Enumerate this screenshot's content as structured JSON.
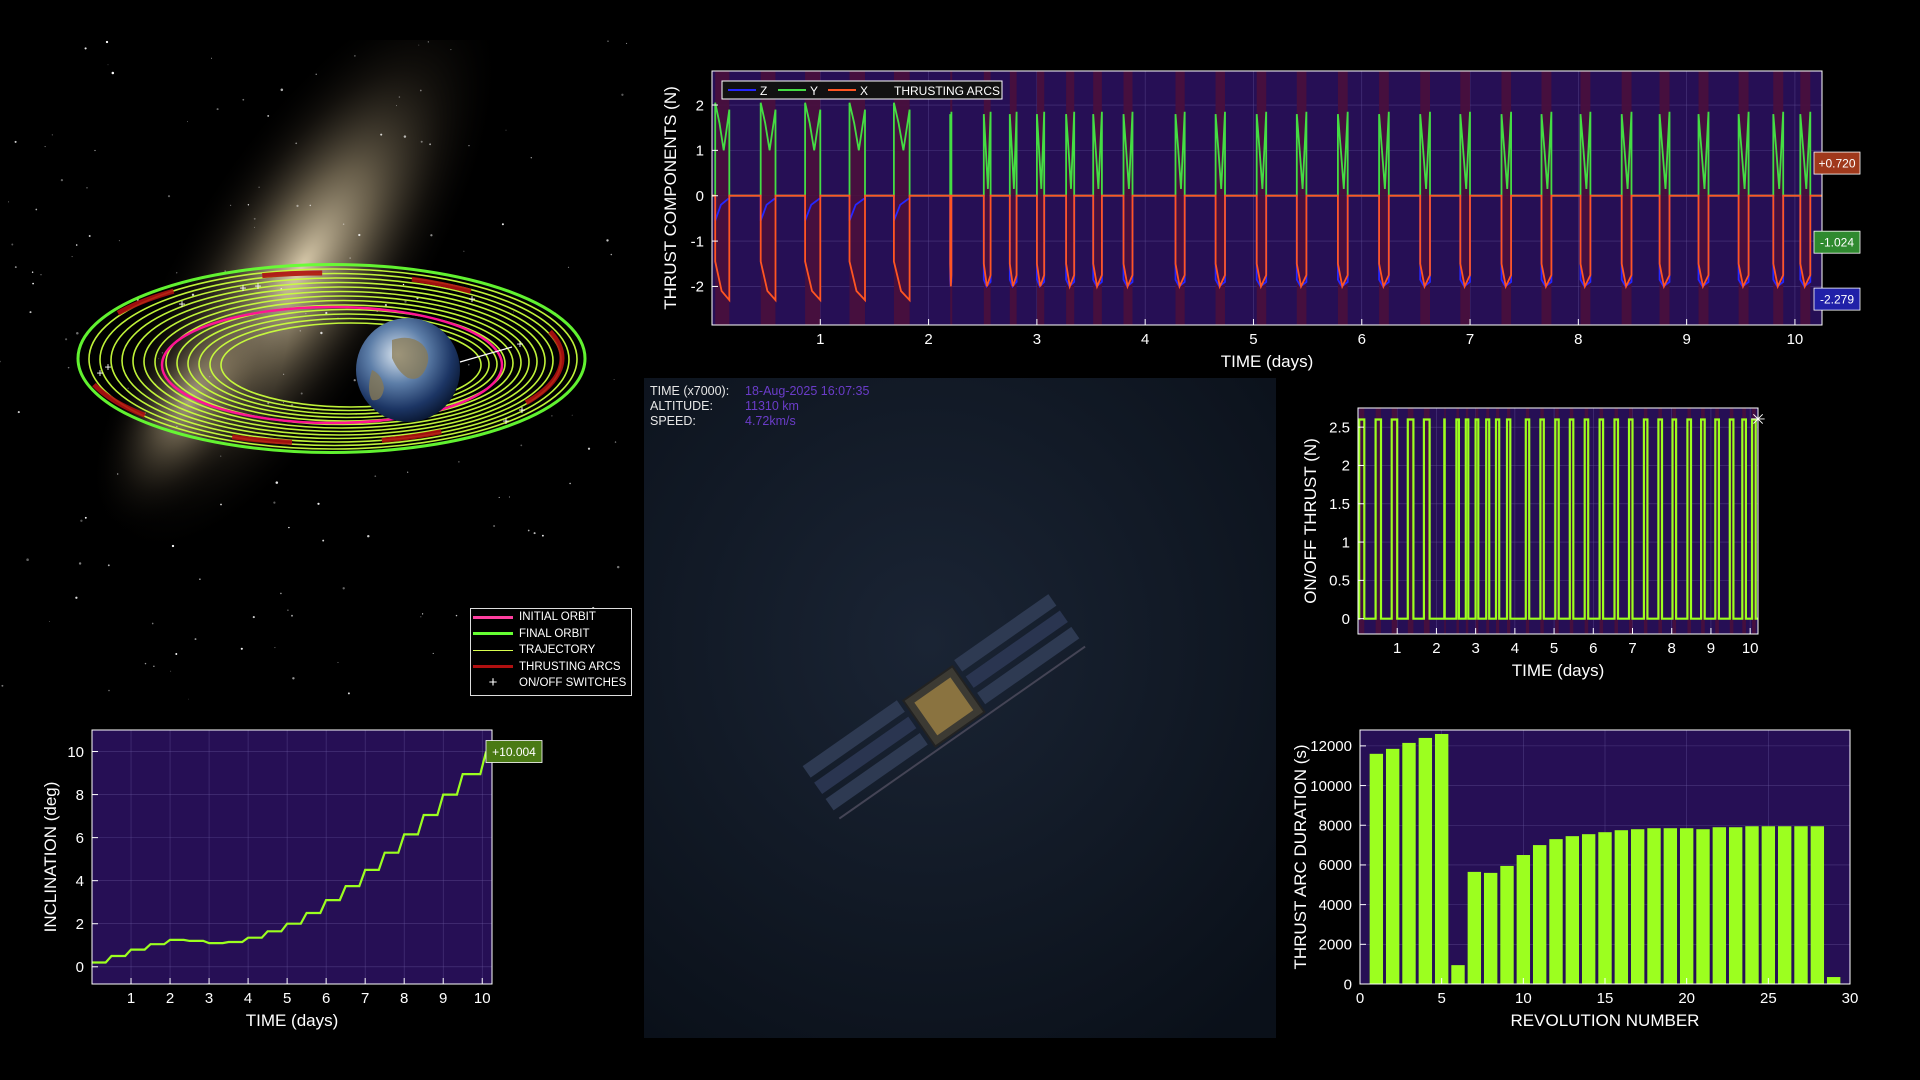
{
  "colors": {
    "background": "#000000",
    "plot_bg": "#260f55",
    "thrusting_band": "#4a0f3c",
    "z": "#2626ff",
    "y": "#44dd44",
    "x": "#ff5522",
    "lime": "#9cff1f",
    "initial_orbit": "#ff1493",
    "final_orbit": "#66ff33",
    "telemetry_value": "#6a3cc8"
  },
  "telemetry": {
    "time_label": "TIME (x7000):",
    "time_value": "18-Aug-2025 16:07:35",
    "altitude_label": "ALTITUDE:",
    "altitude_value": "11310 km",
    "speed_label": "SPEED:",
    "speed_value": "4.72km/s"
  },
  "legend": {
    "items": [
      {
        "label": "INITIAL ORBIT",
        "color": "#ff3fa0",
        "kind": "line"
      },
      {
        "label": "FINAL ORBIT",
        "color": "#66ff33",
        "kind": "line"
      },
      {
        "label": "TRAJECTORY",
        "color": "#d8ff4f",
        "kind": "line"
      },
      {
        "label": "THRUSTING ARCS",
        "color": "#b01010",
        "kind": "line"
      },
      {
        "label": "ON/OFF SWITCHES",
        "color": "#ffffff",
        "kind": "plus"
      }
    ]
  },
  "chart_data": [
    {
      "id": "thrust_components",
      "type": "line",
      "ylabel": "THRUST COMPONENTS (N)",
      "xlabel": "TIME (days)",
      "xlim": [
        0,
        10.25
      ],
      "ylim": [
        -2.85,
        2.75
      ],
      "xticks": [
        1,
        2,
        3,
        4,
        5,
        6,
        7,
        8,
        9,
        10
      ],
      "yticks": [
        -2,
        -1,
        0,
        1,
        2
      ],
      "legend": [
        "Z",
        "Y",
        "X",
        "THRUSTING ARCS"
      ],
      "current_values": [
        {
          "label": "+0.720",
          "value": 0.72,
          "color": "#a0391c"
        },
        {
          "label": "-1.024",
          "value": -1.024,
          "color": "#2f8a2f"
        },
        {
          "label": "-2.279",
          "value": -2.279,
          "color": "#2020a8"
        }
      ],
      "series": [
        {
          "name": "Z",
          "color": "#2626ff"
        },
        {
          "name": "Y",
          "color": "#44dd44"
        },
        {
          "name": "X",
          "color": "#ff5522"
        }
      ],
      "burn_starts": [
        0.03,
        0.45,
        0.86,
        1.27,
        1.68,
        2.2,
        2.51,
        2.75,
        3.0,
        3.27,
        3.52,
        3.8,
        4.28,
        4.65,
        5.03,
        5.4,
        5.78,
        6.16,
        6.54,
        6.91,
        7.29,
        7.66,
        8.02,
        8.4,
        8.75,
        9.11,
        9.48,
        9.8,
        10.05
      ],
      "burn_durations": [
        0.13,
        0.136,
        0.14,
        0.143,
        0.145,
        0.011,
        0.063,
        0.063,
        0.068,
        0.075,
        0.08,
        0.083,
        0.085,
        0.087,
        0.088,
        0.089,
        0.09,
        0.09,
        0.09,
        0.09,
        0.089,
        0.091,
        0.091,
        0.091,
        0.092,
        0.092,
        0.092,
        0.092,
        0.092
      ]
    },
    {
      "id": "onoff_thrust",
      "type": "line",
      "ylabel": "ON/OFF THRUST (N)",
      "xlabel": "TIME (days)",
      "xlim": [
        0,
        10.2
      ],
      "ylim": [
        -0.2,
        2.75
      ],
      "xticks": [
        1,
        2,
        3,
        4,
        5,
        6,
        7,
        8,
        9,
        10
      ],
      "yticks": [
        0,
        0.5,
        1,
        1.5,
        2,
        2.5
      ],
      "on_level": 2.6,
      "off_level": 0
    },
    {
      "id": "inclination",
      "type": "line",
      "ylabel": "INCLINATION (deg)",
      "xlabel": "TIME (days)",
      "xlim": [
        0,
        10.25
      ],
      "ylim": [
        -0.8,
        11
      ],
      "xticks": [
        1,
        2,
        3,
        4,
        5,
        6,
        7,
        8,
        9,
        10
      ],
      "yticks": [
        0,
        2,
        4,
        6,
        8,
        10
      ],
      "current_label": "+10.004",
      "x": [
        0,
        0.5,
        1,
        1.5,
        2,
        2.5,
        3,
        3.5,
        4,
        4.5,
        5,
        5.5,
        6,
        6.5,
        7,
        7.5,
        8,
        8.5,
        9,
        9.5,
        10.1
      ],
      "y": [
        0.2,
        0.5,
        0.8,
        1.05,
        1.25,
        1.2,
        1.1,
        1.15,
        1.35,
        1.65,
        2.0,
        2.5,
        3.1,
        3.75,
        4.5,
        5.3,
        6.15,
        7.05,
        8.0,
        8.95,
        10.0
      ]
    },
    {
      "id": "thrust_arc_duration",
      "type": "bar",
      "ylabel": "THRUST ARC DURATION (s)",
      "xlabel": "REVOLUTION NUMBER",
      "xlim": [
        0,
        30
      ],
      "ylim": [
        0,
        12800
      ],
      "xticks": [
        0,
        5,
        10,
        15,
        20,
        25,
        30
      ],
      "yticks": [
        0,
        2000,
        4000,
        6000,
        8000,
        10000,
        12000
      ],
      "categories": [
        1,
        2,
        3,
        4,
        5,
        6,
        7,
        8,
        9,
        10,
        11,
        12,
        13,
        14,
        15,
        16,
        17,
        18,
        19,
        20,
        21,
        22,
        23,
        24,
        25,
        26,
        27,
        28,
        29
      ],
      "values": [
        11600,
        11850,
        12150,
        12400,
        12600,
        950,
        5650,
        5600,
        5950,
        6500,
        7000,
        7300,
        7450,
        7550,
        7650,
        7750,
        7800,
        7850,
        7850,
        7850,
        7800,
        7900,
        7900,
        7950,
        7950,
        7950,
        7950,
        7950,
        350
      ]
    }
  ]
}
